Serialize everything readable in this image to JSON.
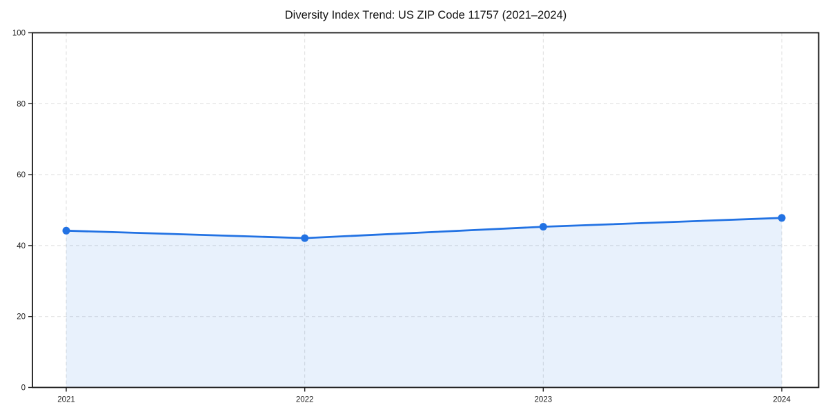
{
  "title": "Diversity Index Trend: US ZIP Code 11757 (2021–2024)",
  "colors": {
    "background": "#ffffff",
    "line": "#2272e3",
    "marker": "#2272e3",
    "area_fill": "rgba(34,114,227,0.10)",
    "grid": "#dcdcdc",
    "axis": "#1a1a1a",
    "tick_label": "#222222",
    "title_text": "#111111"
  },
  "chart_data": {
    "type": "area",
    "title": "Diversity Index Trend: US ZIP Code 11757 (2021–2024)",
    "categories": [
      "2021",
      "2022",
      "2023",
      "2024"
    ],
    "series": [
      {
        "name": "Diversity Index",
        "values": [
          44.2,
          42.1,
          45.3,
          47.8
        ]
      }
    ],
    "xlabel": "",
    "ylabel": "",
    "ylim": [
      0,
      100
    ],
    "yticks": [
      0,
      20,
      40,
      60,
      80,
      100
    ],
    "grid": true,
    "grid_style": "dashed",
    "legend_position": "none",
    "marker": "circle",
    "fill_to_zero": true
  }
}
